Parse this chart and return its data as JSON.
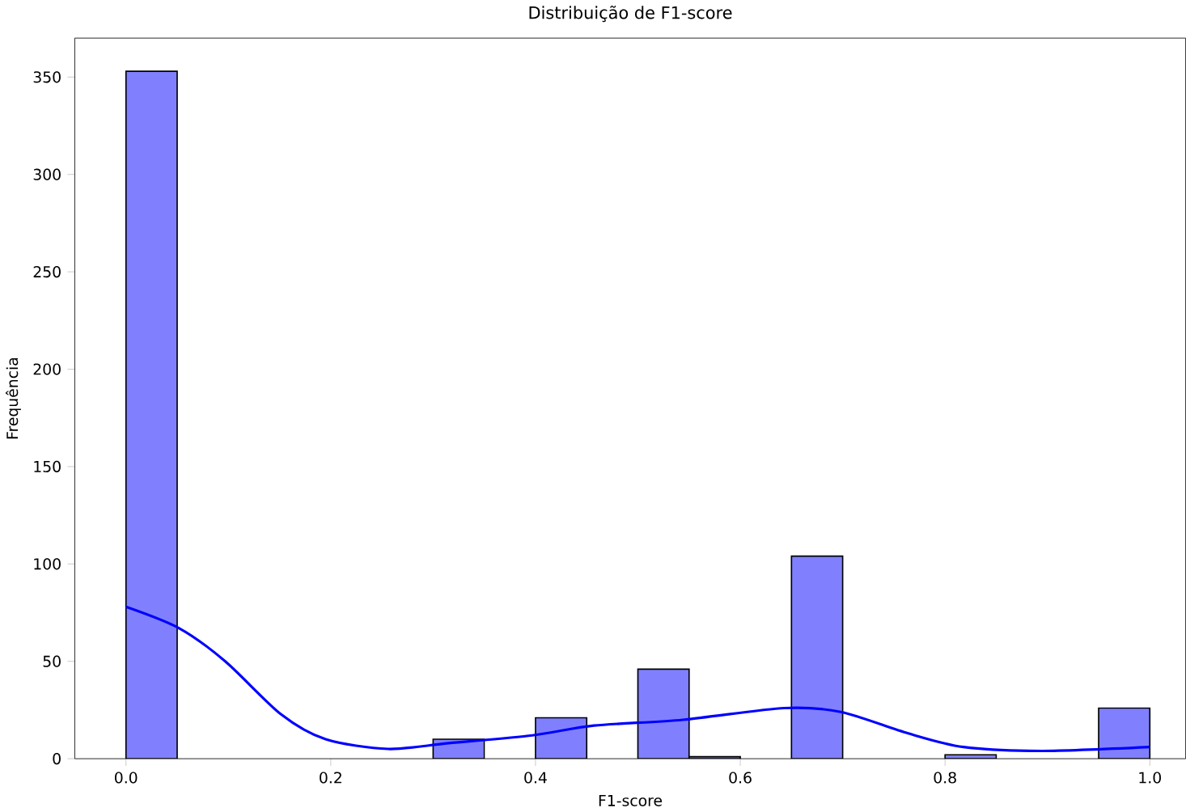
{
  "chart_data": {
    "type": "histogram",
    "title": "Distribuição de F1-score",
    "xlabel": "F1-score",
    "ylabel": "Frequência",
    "bins": [
      0.0,
      0.05,
      0.1,
      0.15,
      0.2,
      0.25,
      0.3,
      0.35,
      0.4,
      0.45,
      0.5,
      0.55,
      0.6,
      0.65,
      0.7,
      0.75,
      0.8,
      0.85,
      0.9,
      0.95,
      1.0
    ],
    "series": [
      {
        "color": "#8080ff",
        "values": [
          353,
          0,
          0,
          0,
          0,
          0,
          10,
          0,
          21,
          0,
          46,
          1,
          0,
          104,
          0,
          0,
          2,
          0,
          0,
          26
        ]
      },
      {
        "type": "line",
        "color": "#0000ff",
        "x": [
          0.0,
          0.052,
          0.097,
          0.151,
          0.195,
          0.256,
          0.315,
          0.397,
          0.457,
          0.544,
          0.643,
          0.698,
          0.764,
          0.818,
          0.895,
          1.0
        ],
        "values": [
          78,
          67,
          50,
          23,
          10,
          5,
          8,
          12,
          17,
          20,
          26,
          24,
          13,
          6,
          4,
          6
        ]
      }
    ],
    "xlim": [
      -0.05,
      1.035
    ],
    "ylim": [
      0,
      370
    ],
    "xticks": [
      {
        "value": 0,
        "label": "0.0"
      },
      0.2,
      0.4,
      0.6,
      0.8,
      {
        "value": 1,
        "label": "1.0"
      }
    ],
    "yticks": [
      0,
      50,
      100,
      150,
      200,
      250,
      300,
      350
    ],
    "grid": false
  }
}
